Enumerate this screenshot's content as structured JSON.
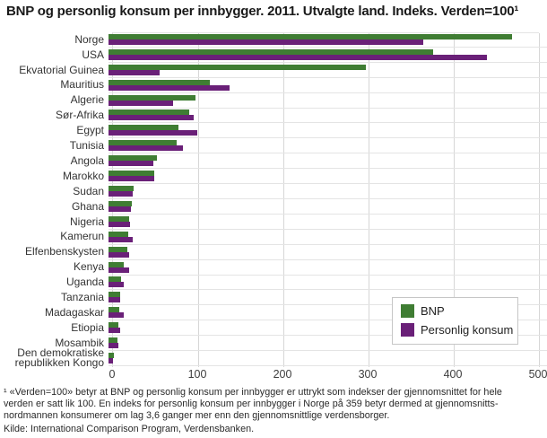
{
  "chart_data": {
    "type": "bar",
    "orientation": "horizontal",
    "title": "BNP og personlig konsum per innbygger. 2011. Utvalgte land. Indeks. Verden=100¹",
    "categories": [
      "Norge",
      "USA",
      "Ekvatorial Guinea",
      "Mauritius",
      "Algerie",
      "Sør-Afrika",
      "Egypt",
      "Tunisia",
      "Angola",
      "Marokko",
      "Sudan",
      "Ghana",
      "Nigeria",
      "Kamerun",
      "Elfenbenskysten",
      "Kenya",
      "Uganda",
      "Tanzania",
      "Madagaskar",
      "Etiopia",
      "Mosambik",
      "Den demokratiske republikken Kongo"
    ],
    "series": [
      {
        "name": "BNP",
        "color": "#3f7d33",
        "values": [
          460,
          370,
          293,
          116,
          99,
          92,
          80,
          78,
          55,
          52,
          29,
          27,
          24,
          22,
          21,
          17,
          14,
          13,
          12,
          11,
          10,
          6
        ]
      },
      {
        "name": "Personlig konsum",
        "color": "#6a2078",
        "values": [
          359,
          432,
          58,
          138,
          74,
          97,
          101,
          85,
          51,
          52,
          28,
          26,
          25,
          28,
          24,
          24,
          17,
          13,
          17,
          13,
          11,
          5
        ]
      }
    ],
    "xlim": [
      0,
      500
    ],
    "xticks": [
      0,
      100,
      200,
      300,
      400,
      500
    ],
    "xlabel": "",
    "ylabel": "",
    "grid": "vertical gridlines and horizontal row separators",
    "legend_position": "inside bottom-right"
  },
  "footnote": {
    "lines": [
      "¹ «Verden=100» betyr at BNP og personlig konsum per innbygger er uttrykt som indekser der gjennomsnittet for hele",
      "verden er satt lik 100. En indeks for personlig konsum per innbygger i Norge på 359 betyr dermed at gjennomsnitts-",
      "nordmannen konsumerer om lag 3,6 ganger mer enn den gjennomsnittlige verdensborger."
    ],
    "source": "Kilde: International Comparison Program, Verdensbanken."
  }
}
